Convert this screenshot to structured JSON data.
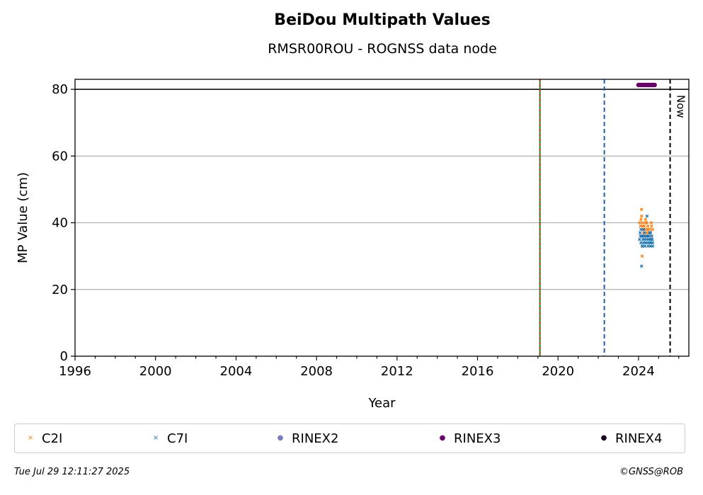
{
  "colors": {
    "C2I": "#ff7f0e",
    "C7I": "#1f77b4",
    "RINEX2": "#7b7bc0",
    "RINEX3": "#6b006b",
    "RINEX4": "#1a0020",
    "green_line": "#1a8a1a",
    "red_line": "#d62728",
    "blue_line": "#1f5fa8",
    "black": "#000000",
    "grid": "#b0b0b0"
  },
  "chart_data": {
    "type": "scatter",
    "title": "BeiDou Multipath Values",
    "subtitle": "RMSR00ROU - ROGNSS data node",
    "xlabel": "Year",
    "ylabel": "MP Value (cm)",
    "xlim": [
      1996,
      2026.5
    ],
    "ylim": [
      0,
      83
    ],
    "x_ticks": [
      1996,
      2000,
      2004,
      2008,
      2012,
      2016,
      2020,
      2024
    ],
    "y_ticks": [
      0,
      20,
      40,
      60,
      80
    ],
    "grid": "y",
    "threshold_hline": 80,
    "vlines": [
      {
        "x": 2019.1,
        "style": "dashed",
        "colors": [
          "green_line",
          "red_line"
        ]
      },
      {
        "x": 2022.3,
        "style": "dashed",
        "colors": [
          "blue_line"
        ]
      },
      {
        "x": 2025.57,
        "style": "dashed",
        "colors": [
          "black"
        ],
        "label": "Now"
      }
    ],
    "series": [
      {
        "name": "C2I",
        "marker": "x",
        "color_key": "C2I",
        "x": [
          2024.05,
          2024.1,
          2024.12,
          2024.15,
          2024.18,
          2024.2,
          2024.22,
          2024.25,
          2024.28,
          2024.3,
          2024.33,
          2024.36,
          2024.4,
          2024.43,
          2024.46,
          2024.5,
          2024.53,
          2024.56,
          2024.6,
          2024.63,
          2024.66,
          2024.7,
          2024.15,
          2024.2,
          2024.35,
          2024.45,
          2024.55,
          2024.65,
          2024.25,
          2024.4
        ],
        "y": [
          40,
          39,
          41,
          44,
          30,
          40,
          38,
          37,
          39,
          36,
          38,
          40,
          37,
          38,
          39,
          37,
          36,
          38,
          37,
          40,
          36,
          38,
          42,
          39,
          41,
          38,
          37,
          39,
          36,
          40
        ]
      },
      {
        "name": "C7I",
        "marker": "x",
        "color_key": "C7I",
        "x": [
          2024.05,
          2024.08,
          2024.1,
          2024.12,
          2024.15,
          2024.18,
          2024.2,
          2024.22,
          2024.25,
          2024.28,
          2024.3,
          2024.32,
          2024.35,
          2024.38,
          2024.4,
          2024.42,
          2024.45,
          2024.48,
          2024.5,
          2024.52,
          2024.55,
          2024.58,
          2024.6,
          2024.62,
          2024.65,
          2024.68,
          2024.7,
          2024.12,
          2024.3,
          2024.45,
          2024.55,
          2024.65,
          2024.2,
          2024.35,
          2024.5,
          2024.6,
          2024.4,
          2024.25,
          2024.15,
          2024.7
        ],
        "y": [
          35,
          37,
          36,
          34,
          27,
          33,
          36,
          35,
          34,
          36,
          35,
          33,
          34,
          36,
          35,
          42,
          34,
          33,
          35,
          36,
          34,
          35,
          33,
          34,
          36,
          35,
          34,
          38,
          37,
          36,
          37,
          35,
          33,
          34,
          35,
          37,
          36,
          38,
          36,
          33
        ]
      },
      {
        "name": "RINEX2",
        "marker": "o",
        "color_key": "RINEX2",
        "x": [],
        "y": []
      },
      {
        "name": "RINEX3",
        "marker": "o",
        "color_key": "RINEX3",
        "x": [
          2024.0,
          2024.1,
          2024.2,
          2024.3,
          2024.4,
          2024.5,
          2024.6,
          2024.7,
          2024.8
        ],
        "y": [
          81.3,
          81.3,
          81.3,
          81.3,
          81.3,
          81.3,
          81.3,
          81.3,
          81.3
        ]
      },
      {
        "name": "RINEX4",
        "marker": "o",
        "color_key": "RINEX4",
        "x": [],
        "y": []
      }
    ]
  },
  "legend": {
    "items": [
      {
        "label": "C2I",
        "symbol": "×",
        "color_key": "C2I"
      },
      {
        "label": "C7I",
        "symbol": "×",
        "color_key": "C7I"
      },
      {
        "label": "RINEX2",
        "symbol": "●",
        "color_key": "RINEX2"
      },
      {
        "label": "RINEX3",
        "symbol": "●",
        "color_key": "RINEX3"
      },
      {
        "label": "RINEX4",
        "symbol": "●",
        "color_key": "RINEX4"
      }
    ]
  },
  "footer": {
    "date": "Tue Jul 29 12:11:27 2025",
    "credit": "©GNSS@ROB"
  }
}
